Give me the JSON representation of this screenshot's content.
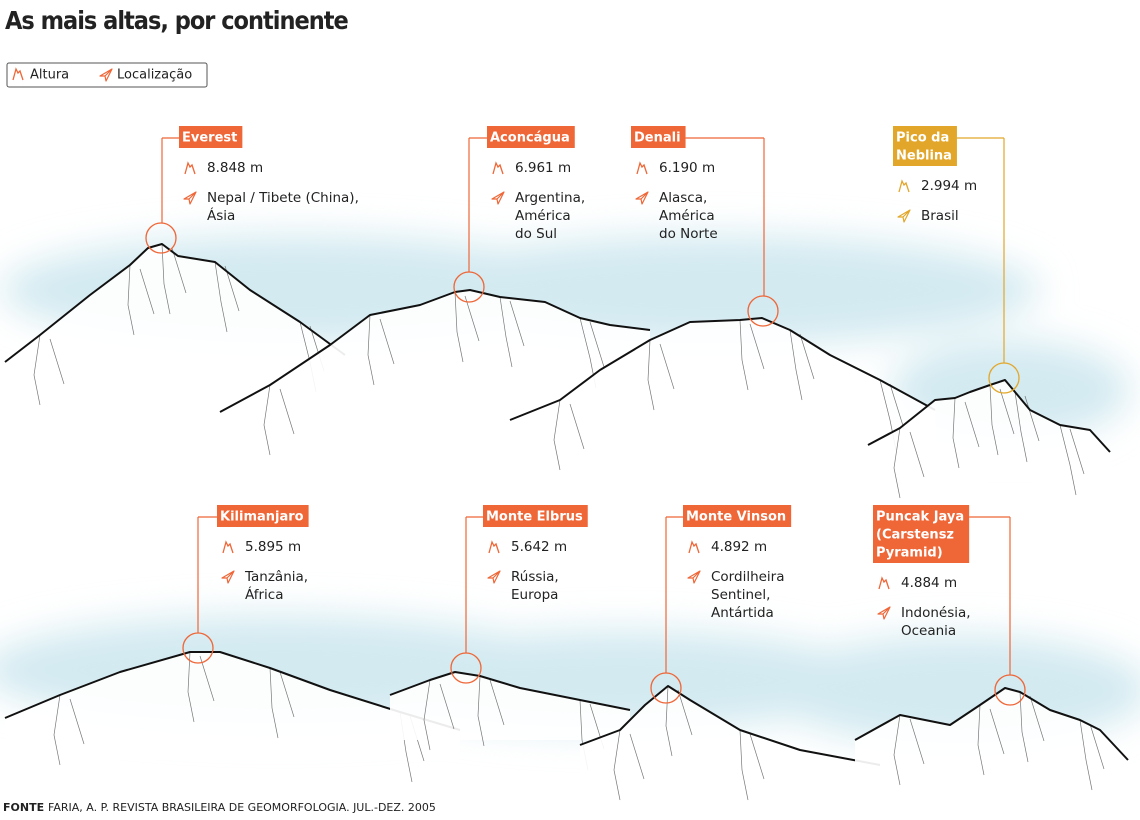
{
  "header": {
    "title": "As mais altas, por continente"
  },
  "legend": {
    "height": "Altura",
    "location": "Localização"
  },
  "peaks": [
    {
      "name": [
        "Everest"
      ],
      "height": "8.848 m",
      "location": [
        "Nepal / Tibete (China),",
        "Ásia"
      ]
    },
    {
      "name": [
        "Aconcágua"
      ],
      "height": "6.961 m",
      "location": [
        "Argentina,",
        "América",
        "do Sul"
      ]
    },
    {
      "name": [
        "Denali"
      ],
      "height": "6.190 m",
      "location": [
        "Alasca,",
        "América",
        "do Norte"
      ]
    },
    {
      "name": [
        "Pico da",
        "Neblina"
      ],
      "height": "2.994 m",
      "location": [
        "Brasil"
      ]
    },
    {
      "name": [
        "Kilimanjaro"
      ],
      "height": "5.895 m",
      "location": [
        "Tanzânia,",
        "África"
      ]
    },
    {
      "name": [
        "Monte Elbrus"
      ],
      "height": "5.642 m",
      "location": [
        "Rússia,",
        "Europa"
      ]
    },
    {
      "name": [
        "Monte Vinson"
      ],
      "height": "4.892 m",
      "location": [
        "Cordilheira",
        "Sentinel,",
        "Antártida"
      ]
    },
    {
      "name": [
        "Puncak Jaya",
        "(Carstensz",
        "Pyramid)"
      ],
      "height": "4.884 m",
      "location": [
        "Indonésia,",
        "Oceania"
      ]
    }
  ],
  "source": {
    "label": "FONTE",
    "text": "FARIA, A. P. REVISTA BRASILEIRA DE GEOMORFOLOGIA. JUL.-DEZ. 2005"
  }
}
